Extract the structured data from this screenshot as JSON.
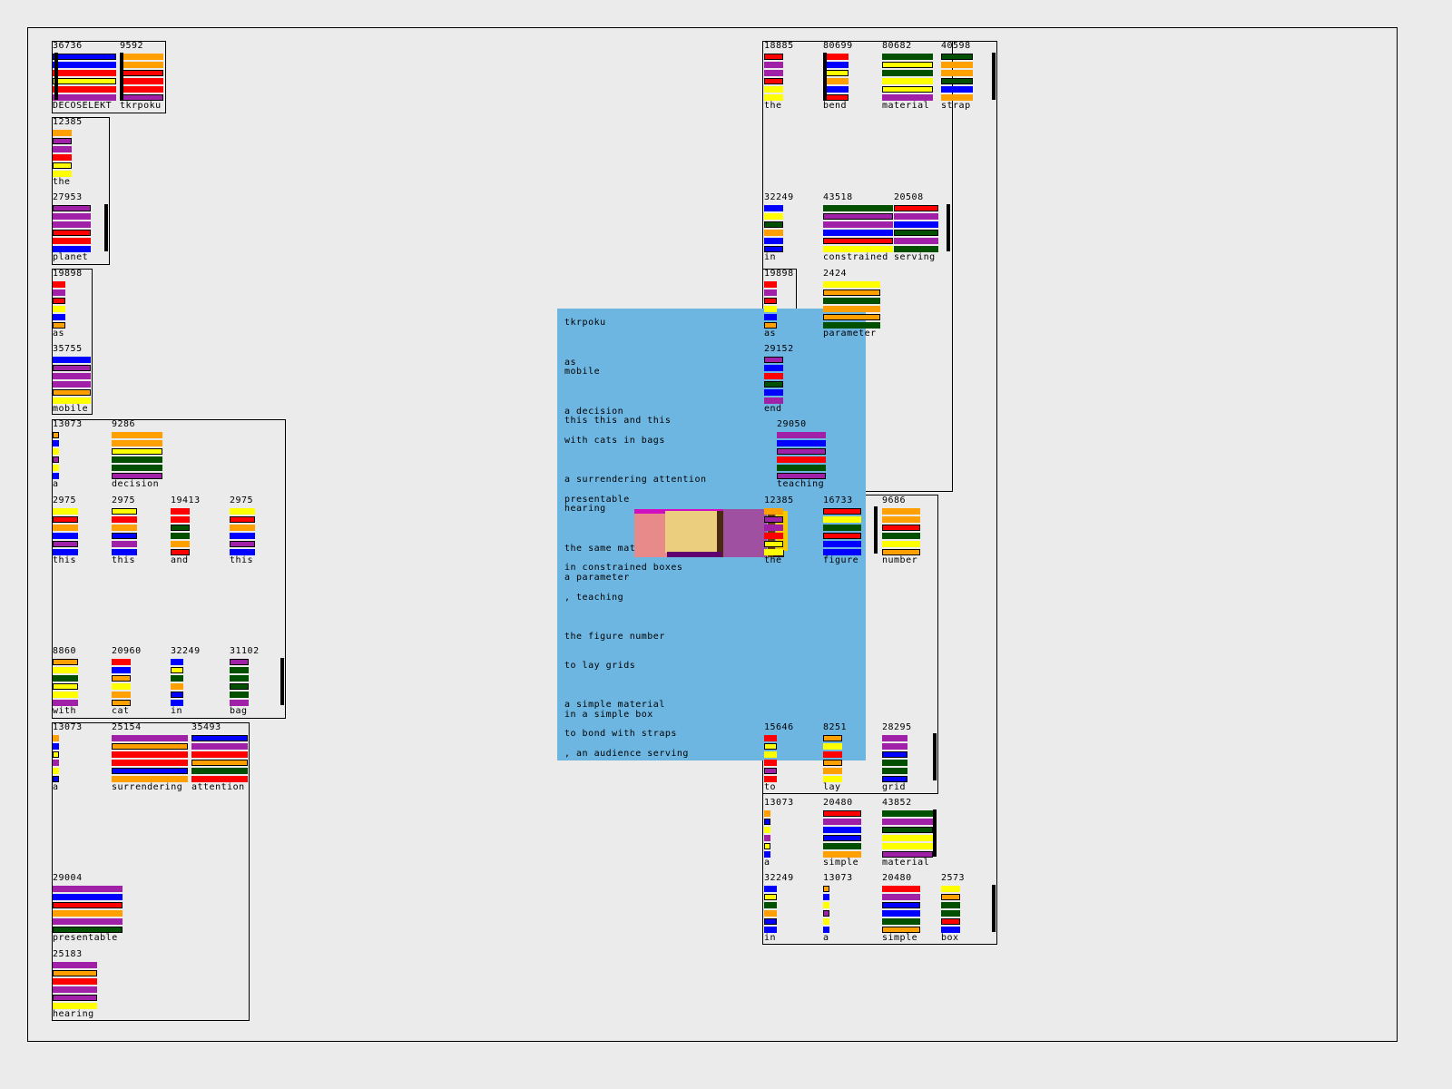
{
  "palette": {
    "R": "#ff0000",
    "B": "#0000ff",
    "Y": "#ffff00",
    "O": "#ffa000",
    "P": "#a020a8",
    "G": "#005000"
  },
  "panel_color": "#6eb6e2",
  "glyphs": [
    {
      "num": "36736",
      "label": "DECOSELEKT",
      "bars": "BBRYRP"
    },
    {
      "num": "9592",
      "label": "tkrpoku",
      "bars": "OORRRP"
    },
    {
      "num": "12385",
      "label": "the",
      "bars": "OPPRYY"
    },
    {
      "num": "27953",
      "label": "planet",
      "bars": "PPPRRB"
    },
    {
      "num": "19898",
      "label": "as",
      "bars": "RPRYBO"
    },
    {
      "num": "35755",
      "label": "mobile",
      "bars": "BPPPOY"
    },
    {
      "num": "13073",
      "label": "a",
      "bars": "OBYPYB"
    },
    {
      "num": "9286",
      "label": "decision",
      "bars": "OOYGGP"
    },
    {
      "num": "2975",
      "label": "this",
      "bars": "YROBPB"
    },
    {
      "num": "2975",
      "label": "this",
      "bars": "YROBPB"
    },
    {
      "num": "19413",
      "label": "and",
      "bars": "RRGGOR"
    },
    {
      "num": "2975",
      "label": "this",
      "bars": "YROBPB"
    },
    {
      "num": "8860",
      "label": "with",
      "bars": "OYGYYP"
    },
    {
      "num": "20960",
      "label": "cat",
      "bars": "RBOYOO"
    },
    {
      "num": "32249",
      "label": "in",
      "bars": "BYGOBB"
    },
    {
      "num": "31102",
      "label": "bag",
      "bars": "PGGGGP"
    },
    {
      "num": "13073",
      "label": "a",
      "bars": "OBYPYB"
    },
    {
      "num": "25154",
      "label": "surrendering",
      "bars": "PORRBO"
    },
    {
      "num": "35493",
      "label": "attention",
      "bars": "BPROGR"
    },
    {
      "num": "29004",
      "label": "presentable",
      "bars": "PBROPG"
    },
    {
      "num": "25183",
      "label": "hearing",
      "bars": "PORPPY"
    },
    {
      "num": "18885",
      "label": "the",
      "bars": "RPPRYY"
    },
    {
      "num": "80699",
      "label": "bend",
      "bars": "RBYOBR"
    },
    {
      "num": "80682",
      "label": "material",
      "bars": "GYGYYP"
    },
    {
      "num": "40598",
      "label": "strap",
      "bars": "GOOGBO"
    },
    {
      "num": "32249",
      "label": "in",
      "bars": "BYGOBB"
    },
    {
      "num": "43518",
      "label": "constrained",
      "bars": "GPPBRY"
    },
    {
      "num": "20508",
      "label": "serving",
      "bars": "RPBGPG"
    },
    {
      "num": "19898",
      "label": "as",
      "bars": "RPRYBO"
    },
    {
      "num": "2424",
      "label": "parameter",
      "bars": "YOGOOG"
    },
    {
      "num": "29152",
      "label": "end",
      "bars": "PBRGBP"
    },
    {
      "num": "29050",
      "label": "teaching",
      "bars": "PBPRGP"
    },
    {
      "num": "12385",
      "label": "the",
      "bars": "OPPRYY"
    },
    {
      "num": "16733",
      "label": "figure",
      "bars": "RYGRBB"
    },
    {
      "num": "9686",
      "label": "number",
      "bars": "OORGYO"
    },
    {
      "num": "15646",
      "label": "to",
      "bars": "RYYRPR"
    },
    {
      "num": "8251",
      "label": "lay",
      "bars": "OYROOY"
    },
    {
      "num": "28295",
      "label": "grid",
      "bars": "PPBGGB"
    },
    {
      "num": "13073",
      "label": "a",
      "bars": "OBYPYB"
    },
    {
      "num": "20480",
      "label": "simple",
      "bars": "RPBBGO"
    },
    {
      "num": "43852",
      "label": "material",
      "bars": "GPGYYP"
    },
    {
      "num": "32249",
      "label": "in",
      "bars": "BYGOBB"
    },
    {
      "num": "13073",
      "label": "a",
      "bars": "OBYPYB"
    },
    {
      "num": "20480",
      "label": "simple",
      "bars": "RPBBGO"
    },
    {
      "num": "2573",
      "label": "box",
      "bars": "YOGGRB"
    }
  ],
  "poem": [
    "tkrpoku",
    "as",
    "mobile",
    "a decision",
    "this this and this",
    "with cats in bags",
    "a surrendering attention",
    "presentable",
    "hearing",
    "the same material",
    "in constrained boxes",
    "a parameter",
    ", teaching",
    "the figure number",
    "to lay grids",
    "a simple material",
    "in a simple box",
    "to bond with straps",
    ", an audience serving"
  ]
}
